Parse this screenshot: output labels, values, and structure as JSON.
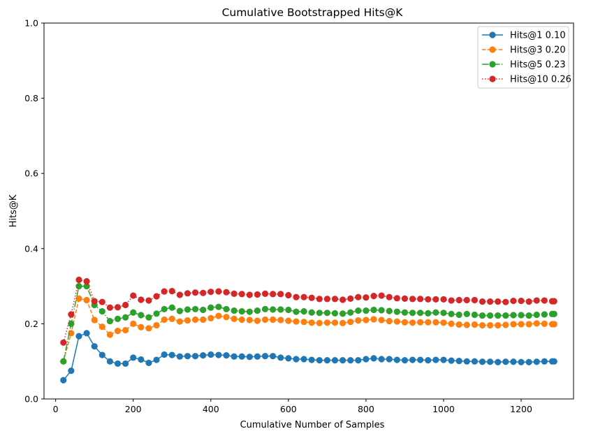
{
  "chart_data": {
    "type": "line",
    "title": "Cumulative Bootstrapped Hits@K",
    "xlabel": "Cumulative Number of Samples",
    "ylabel": "Hits@K",
    "xlim": [
      -30,
      1335
    ],
    "ylim": [
      0,
      1
    ],
    "xticks": [
      0,
      200,
      400,
      600,
      800,
      1000,
      1200
    ],
    "yticks": [
      0.0,
      0.2,
      0.4,
      0.6,
      0.8,
      1.0
    ],
    "xtick_labels": [
      "0",
      "200",
      "400",
      "600",
      "800",
      "1000",
      "1200"
    ],
    "ytick_labels": [
      "0.0",
      "0.2",
      "0.4",
      "0.6",
      "0.8",
      "1.0"
    ],
    "grid": false,
    "legend_position": "top-right",
    "x": [
      20,
      40,
      60,
      80,
      100,
      120,
      140,
      160,
      180,
      200,
      220,
      240,
      260,
      280,
      300,
      320,
      340,
      360,
      380,
      400,
      420,
      440,
      460,
      480,
      500,
      520,
      540,
      560,
      580,
      600,
      620,
      640,
      660,
      680,
      700,
      720,
      740,
      760,
      780,
      800,
      820,
      840,
      860,
      880,
      900,
      920,
      940,
      960,
      980,
      1000,
      1020,
      1040,
      1060,
      1080,
      1100,
      1120,
      1140,
      1160,
      1180,
      1200,
      1220,
      1240,
      1260,
      1280,
      1285
    ],
    "series": [
      {
        "name": "Hits@1 0.10",
        "color": "#1f77b4",
        "linestyle": "solid",
        "values": [
          0.05,
          0.075,
          0.167,
          0.175,
          0.14,
          0.117,
          0.1,
          0.094,
          0.094,
          0.11,
          0.105,
          0.096,
          0.104,
          0.118,
          0.117,
          0.113,
          0.114,
          0.114,
          0.116,
          0.118,
          0.117,
          0.116,
          0.113,
          0.113,
          0.112,
          0.113,
          0.114,
          0.114,
          0.11,
          0.108,
          0.106,
          0.106,
          0.104,
          0.103,
          0.103,
          0.103,
          0.103,
          0.103,
          0.103,
          0.106,
          0.108,
          0.106,
          0.106,
          0.104,
          0.103,
          0.104,
          0.104,
          0.103,
          0.104,
          0.104,
          0.102,
          0.101,
          0.1,
          0.1,
          0.099,
          0.099,
          0.098,
          0.099,
          0.099,
          0.098,
          0.098,
          0.099,
          0.1,
          0.1,
          0.1
        ]
      },
      {
        "name": "Hits@3 0.20",
        "color": "#ff7f0e",
        "linestyle": "dashed",
        "values": [
          0.1,
          0.175,
          0.267,
          0.263,
          0.21,
          0.192,
          0.171,
          0.181,
          0.183,
          0.2,
          0.191,
          0.188,
          0.196,
          0.211,
          0.213,
          0.206,
          0.209,
          0.211,
          0.211,
          0.215,
          0.221,
          0.218,
          0.213,
          0.211,
          0.21,
          0.208,
          0.211,
          0.211,
          0.21,
          0.208,
          0.206,
          0.205,
          0.203,
          0.202,
          0.203,
          0.203,
          0.202,
          0.205,
          0.209,
          0.21,
          0.212,
          0.21,
          0.207,
          0.206,
          0.204,
          0.203,
          0.204,
          0.204,
          0.204,
          0.203,
          0.2,
          0.198,
          0.197,
          0.198,
          0.196,
          0.196,
          0.196,
          0.197,
          0.199,
          0.199,
          0.199,
          0.201,
          0.2,
          0.199,
          0.199
        ]
      },
      {
        "name": "Hits@5 0.23",
        "color": "#2ca02c",
        "linestyle": "dashdot",
        "values": [
          0.1,
          0.2,
          0.3,
          0.3,
          0.25,
          0.233,
          0.207,
          0.213,
          0.217,
          0.23,
          0.223,
          0.217,
          0.227,
          0.239,
          0.243,
          0.234,
          0.238,
          0.239,
          0.237,
          0.243,
          0.245,
          0.239,
          0.235,
          0.233,
          0.232,
          0.235,
          0.239,
          0.238,
          0.238,
          0.237,
          0.232,
          0.233,
          0.23,
          0.229,
          0.229,
          0.228,
          0.227,
          0.23,
          0.235,
          0.235,
          0.237,
          0.236,
          0.234,
          0.232,
          0.23,
          0.229,
          0.229,
          0.228,
          0.23,
          0.229,
          0.226,
          0.224,
          0.226,
          0.224,
          0.222,
          0.222,
          0.222,
          0.222,
          0.223,
          0.223,
          0.222,
          0.224,
          0.225,
          0.226,
          0.226
        ]
      },
      {
        "name": "Hits@10 0.26",
        "color": "#d62728",
        "linestyle": "dotted",
        "values": [
          0.15,
          0.225,
          0.317,
          0.313,
          0.26,
          0.258,
          0.243,
          0.244,
          0.25,
          0.275,
          0.264,
          0.262,
          0.273,
          0.286,
          0.287,
          0.277,
          0.281,
          0.283,
          0.282,
          0.285,
          0.286,
          0.284,
          0.28,
          0.279,
          0.277,
          0.278,
          0.28,
          0.279,
          0.279,
          0.276,
          0.271,
          0.271,
          0.269,
          0.266,
          0.266,
          0.266,
          0.264,
          0.267,
          0.271,
          0.27,
          0.274,
          0.275,
          0.271,
          0.268,
          0.267,
          0.266,
          0.266,
          0.265,
          0.265,
          0.265,
          0.262,
          0.263,
          0.263,
          0.263,
          0.259,
          0.259,
          0.259,
          0.258,
          0.261,
          0.261,
          0.259,
          0.262,
          0.262,
          0.26,
          0.26
        ]
      }
    ]
  }
}
